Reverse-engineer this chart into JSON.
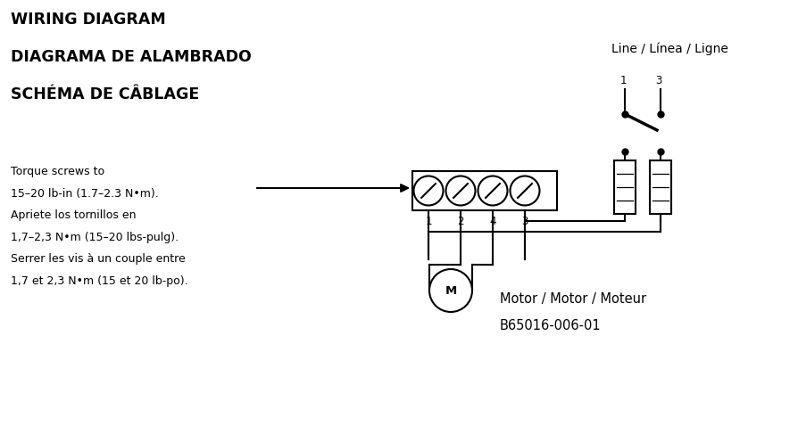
{
  "bg_color": "#ffffff",
  "title_lines": [
    "WIRING DIAGRAM",
    "DIAGRAMA DE ALAMBRADO",
    "SCHÉMA DE CÂBLAGE"
  ],
  "title_fontsize": 12.5,
  "torque_lines": [
    "Torque screws to",
    "15–20 lb-in (1.7–2.3 N•m).",
    "Apriete los tornillos en",
    "1,7–2,3 N•m (15–20 lbs-pulg).",
    "Serrer les vis à un couple entre",
    "1,7 et 2,3 N•m (15 et 20 lb-po)."
  ],
  "torque_fontsize": 9.0,
  "line_label": "Line / Línea / Ligne",
  "motor_label_line1": "Motor / Motor / Moteur",
  "motor_label_line2": "B65016-006-01",
  "motor_label_fontsize": 10.5,
  "screw_labels": [
    "1",
    "2",
    "4",
    "3"
  ],
  "switch_labels": [
    "1",
    "3"
  ]
}
